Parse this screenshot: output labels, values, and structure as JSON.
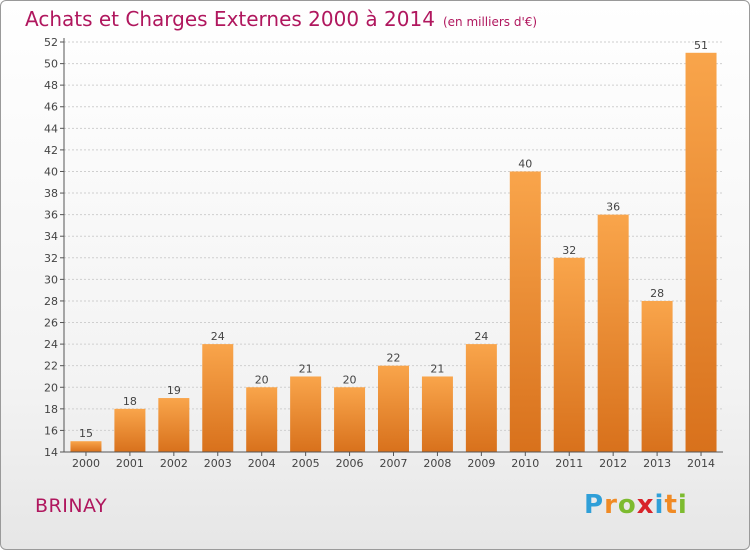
{
  "header": {
    "title": "Achats et Charges Externes 2000 à 2014",
    "subtitle": "(en milliers d'€)"
  },
  "footer": {
    "commune": "BRINAY",
    "logo_letters": [
      "P",
      "r",
      "o",
      "x",
      "i",
      "t",
      "i"
    ],
    "logo_colors": [
      "#2f9fd8",
      "#f08a24",
      "#7dbb2f",
      "#d8232a",
      "#2f9fd8",
      "#f08a24",
      "#7dbb2f"
    ]
  },
  "colors": {
    "title": "#b0175e",
    "bar_light": "#f9a54b",
    "bar_dark": "#d8711c",
    "axis": "#555555",
    "grid": "#cfcfcf"
  },
  "chart_data": {
    "type": "bar",
    "title": "Achats et Charges Externes 2000 à 2014",
    "subtitle": "(en milliers d'€)",
    "xlabel": "",
    "ylabel": "",
    "categories": [
      "2000",
      "2001",
      "2002",
      "2003",
      "2004",
      "2005",
      "2006",
      "2007",
      "2008",
      "2009",
      "2010",
      "2011",
      "2012",
      "2013",
      "2014"
    ],
    "values": [
      15,
      18,
      19,
      24,
      20,
      21,
      20,
      22,
      21,
      24,
      40,
      32,
      36,
      28,
      51
    ],
    "ylim": [
      14,
      52
    ],
    "yticks": [
      14,
      16,
      18,
      20,
      22,
      24,
      26,
      28,
      30,
      32,
      34,
      36,
      38,
      40,
      42,
      44,
      46,
      48,
      50,
      52
    ],
    "grid": true,
    "legend": "none"
  }
}
